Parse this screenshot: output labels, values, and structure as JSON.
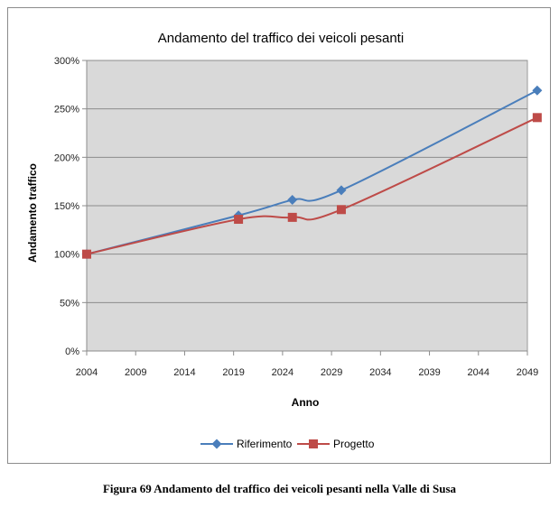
{
  "caption": "Figura 69 Andamento del traffico dei veicoli pesanti nella Valle di Susa",
  "chart_data": {
    "type": "line",
    "title": "Andamento del traffico dei veicoli pesanti",
    "xlabel": "Anno",
    "ylabel": "Andamento traffico",
    "xlim": [
      2004,
      2049
    ],
    "ylim": [
      0,
      300
    ],
    "xticks": [
      2004,
      2009,
      2014,
      2019,
      2024,
      2029,
      2034,
      2039,
      2044,
      2049
    ],
    "xtick_labels": [
      "2004",
      "2009",
      "2014",
      "2019",
      "2024",
      "2029",
      "2034",
      "2039",
      "2044",
      "2049"
    ],
    "yticks": [
      0,
      50,
      100,
      150,
      200,
      250,
      300
    ],
    "ytick_labels": [
      "0%",
      "50%",
      "100%",
      "150%",
      "200%",
      "250%",
      "300%"
    ],
    "grid": true,
    "legend_position": "bottom",
    "plot_background": "#d9d9d9",
    "series": [
      {
        "name": "Riferimento",
        "color": "#4a7ebb",
        "marker": "diamond",
        "x": [
          2004,
          2019.5,
          2025,
          2030,
          2050
        ],
        "values": [
          100,
          140,
          156,
          166,
          269
        ]
      },
      {
        "name": "Progetto",
        "color": "#be4b48",
        "marker": "square",
        "x": [
          2004,
          2019.5,
          2025,
          2030,
          2050
        ],
        "values": [
          100,
          136,
          138,
          146,
          241
        ]
      }
    ]
  }
}
